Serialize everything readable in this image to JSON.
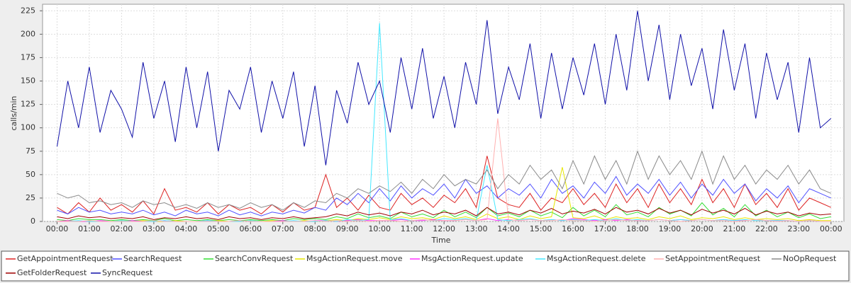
{
  "chart_data": {
    "type": "line",
    "x_label": "Time",
    "y_label": "calls/min",
    "grid": true,
    "legend": "bottom",
    "x": [
      0,
      20,
      40,
      60,
      80,
      100,
      120,
      140,
      160,
      180,
      200,
      220,
      240,
      260,
      280,
      300,
      320,
      340,
      360,
      380,
      400,
      420,
      440,
      460,
      480,
      500,
      520,
      540,
      560,
      580,
      600,
      620,
      640,
      660,
      680,
      700,
      720,
      740,
      760,
      780,
      800,
      820,
      840,
      860,
      880,
      900,
      920,
      940,
      960,
      980,
      1000,
      1020,
      1040,
      1060,
      1080,
      1100,
      1120,
      1140,
      1160,
      1180,
      1200,
      1220,
      1240,
      1260,
      1280,
      1300,
      1320,
      1340,
      1360,
      1380,
      1400,
      1420,
      1440
    ],
    "xlim": [
      -27,
      1464
    ],
    "xticks": [
      {
        "value": 0,
        "label": "00:00"
      },
      {
        "value": 60,
        "label": "01:00"
      },
      {
        "value": 120,
        "label": "02:00"
      },
      {
        "value": 180,
        "label": "03:00"
      },
      {
        "value": 240,
        "label": "04:00"
      },
      {
        "value": 300,
        "label": "05:00"
      },
      {
        "value": 360,
        "label": "06:00"
      },
      {
        "value": 420,
        "label": "07:00"
      },
      {
        "value": 480,
        "label": "08:00"
      },
      {
        "value": 540,
        "label": "09:00"
      },
      {
        "value": 600,
        "label": "10:00"
      },
      {
        "value": 660,
        "label": "11:00"
      },
      {
        "value": 720,
        "label": "12:00"
      },
      {
        "value": 780,
        "label": "13:00"
      },
      {
        "value": 840,
        "label": "14:00"
      },
      {
        "value": 900,
        "label": "15:00"
      },
      {
        "value": 960,
        "label": "16:00"
      },
      {
        "value": 1020,
        "label": "17:00"
      },
      {
        "value": 1080,
        "label": "18:00"
      },
      {
        "value": 1140,
        "label": "19:00"
      },
      {
        "value": 1200,
        "label": "20:00"
      },
      {
        "value": 1260,
        "label": "21:00"
      },
      {
        "value": 1320,
        "label": "22:00"
      },
      {
        "value": 1380,
        "label": "23:00"
      },
      {
        "value": 1440,
        "label": "00:00"
      }
    ],
    "ylim": [
      0,
      232
    ],
    "yticks": [
      0,
      25,
      50,
      75,
      100,
      125,
      150,
      175,
      200,
      225
    ],
    "series": [
      {
        "name": "GetAppointmentRequest",
        "color": "#dd2222",
        "values": [
          15,
          8,
          20,
          10,
          25,
          12,
          18,
          10,
          22,
          8,
          35,
          12,
          15,
          10,
          20,
          8,
          18,
          12,
          15,
          8,
          18,
          10,
          20,
          12,
          15,
          50,
          15,
          25,
          12,
          28,
          15,
          12,
          30,
          18,
          25,
          15,
          28,
          20,
          35,
          15,
          70,
          25,
          18,
          15,
          30,
          12,
          25,
          20,
          35,
          18,
          30,
          15,
          40,
          20,
          35,
          15,
          40,
          20,
          35,
          18,
          45,
          20,
          35,
          15,
          40,
          18,
          30,
          15,
          35,
          12,
          25,
          20,
          15
        ]
      },
      {
        "name": "SearchRequest",
        "color": "#4f4fff",
        "values": [
          12,
          8,
          15,
          10,
          12,
          8,
          10,
          8,
          12,
          7,
          10,
          6,
          12,
          8,
          10,
          6,
          12,
          7,
          10,
          6,
          10,
          8,
          12,
          9,
          15,
          12,
          25,
          18,
          30,
          20,
          35,
          22,
          38,
          25,
          35,
          28,
          40,
          25,
          45,
          30,
          38,
          25,
          35,
          28,
          40,
          25,
          45,
          30,
          38,
          25,
          42,
          30,
          48,
          28,
          40,
          30,
          45,
          28,
          42,
          25,
          40,
          28,
          45,
          30,
          40,
          22,
          35,
          25,
          38,
          20,
          35,
          30,
          25
        ]
      },
      {
        "name": "SearchConvRequest",
        "color": "#33dd33",
        "values": [
          2,
          1,
          3,
          2,
          2,
          1,
          2,
          1,
          2,
          1,
          3,
          1,
          2,
          1,
          2,
          1,
          2,
          1,
          2,
          1,
          2,
          1,
          3,
          2,
          3,
          2,
          5,
          3,
          8,
          4,
          6,
          3,
          10,
          5,
          8,
          4,
          12,
          5,
          10,
          4,
          15,
          6,
          9,
          5,
          12,
          6,
          10,
          4,
          15,
          6,
          12,
          5,
          18,
          7,
          10,
          5,
          15,
          8,
          12,
          6,
          20,
          7,
          14,
          5,
          18,
          6,
          12,
          5,
          10,
          4,
          8,
          3,
          5
        ]
      },
      {
        "name": "MsgActionRequest.move",
        "color": "#e6e600",
        "values": [
          0,
          1,
          0,
          1,
          0,
          0,
          1,
          0,
          1,
          0,
          0,
          1,
          0,
          0,
          0,
          1,
          0,
          0,
          1,
          0,
          1,
          0,
          0,
          1,
          0,
          1,
          2,
          1,
          3,
          2,
          4,
          2,
          5,
          3,
          4,
          2,
          6,
          3,
          5,
          2,
          8,
          3,
          5,
          2,
          6,
          3,
          5,
          58,
          4,
          3,
          6,
          2,
          5,
          3,
          4,
          2,
          5,
          3,
          6,
          2,
          4,
          3,
          5,
          2,
          4,
          2,
          3,
          2,
          3,
          1,
          2,
          1,
          1
        ]
      },
      {
        "name": "MsgActionRequest.update",
        "color": "#ff33ff",
        "values": [
          0,
          1,
          0,
          0,
          1,
          0,
          0,
          1,
          0,
          0,
          1,
          0,
          0,
          0,
          1,
          0,
          0,
          1,
          0,
          0,
          0,
          1,
          0,
          0,
          1,
          1,
          0,
          1,
          2,
          1,
          1,
          1,
          2,
          1,
          1,
          2,
          1,
          1,
          2,
          1,
          3,
          1,
          2,
          1,
          2,
          1,
          2,
          1,
          3,
          2,
          1,
          2,
          1,
          2,
          1,
          1,
          2,
          1,
          2,
          1,
          2,
          1,
          2,
          1,
          1,
          2,
          1,
          1,
          1,
          0,
          1,
          0,
          0
        ]
      },
      {
        "name": "MsgActionRequest.delete",
        "color": "#44e8ff",
        "values": [
          0,
          0,
          1,
          0,
          0,
          0,
          1,
          0,
          0,
          0,
          1,
          0,
          0,
          0,
          1,
          0,
          0,
          0,
          1,
          0,
          0,
          0,
          1,
          0,
          0,
          1,
          0,
          2,
          1,
          2,
          212,
          2,
          3,
          1,
          2,
          1,
          3,
          2,
          3,
          1,
          60,
          2,
          1,
          2,
          3,
          1,
          2,
          1,
          2,
          1,
          2,
          1,
          3,
          1,
          2,
          1,
          2,
          1,
          2,
          1,
          2,
          1,
          2,
          1,
          2,
          1,
          1,
          1,
          1,
          0,
          1,
          0,
          0
        ]
      },
      {
        "name": "SetAppointmentRequest",
        "color": "#ffb0b0",
        "values": [
          0,
          0,
          0,
          1,
          0,
          0,
          0,
          0,
          0,
          1,
          0,
          0,
          0,
          0,
          0,
          0,
          0,
          1,
          0,
          0,
          0,
          0,
          0,
          0,
          1,
          0,
          1,
          0,
          1,
          0,
          1,
          1,
          0,
          1,
          2,
          1,
          1,
          1,
          2,
          1,
          2,
          110,
          2,
          1,
          2,
          1,
          1,
          2,
          1,
          1,
          0,
          1,
          2,
          1,
          1,
          1,
          2,
          1,
          0,
          1,
          2,
          1,
          1,
          0,
          1,
          2,
          1,
          0,
          1,
          0,
          1,
          0,
          0
        ]
      },
      {
        "name": "NoOpRequest",
        "color": "#8a8a8a",
        "values": [
          30,
          25,
          28,
          20,
          22,
          18,
          20,
          15,
          22,
          18,
          20,
          15,
          18,
          14,
          20,
          15,
          18,
          14,
          20,
          15,
          18,
          12,
          20,
          15,
          22,
          20,
          30,
          25,
          35,
          30,
          38,
          32,
          42,
          30,
          45,
          35,
          50,
          38,
          45,
          40,
          55,
          35,
          50,
          40,
          60,
          45,
          55,
          35,
          65,
          40,
          70,
          45,
          65,
          40,
          75,
          45,
          70,
          50,
          65,
          45,
          75,
          40,
          70,
          45,
          60,
          40,
          55,
          45,
          60,
          40,
          55,
          35,
          30
        ]
      },
      {
        "name": "GetFolderRequest",
        "color": "#a00000",
        "values": [
          5,
          3,
          6,
          4,
          5,
          3,
          4,
          3,
          5,
          2,
          4,
          3,
          5,
          3,
          4,
          2,
          5,
          3,
          4,
          2,
          4,
          3,
          5,
          3,
          4,
          5,
          8,
          6,
          10,
          7,
          9,
          6,
          10,
          8,
          12,
          7,
          10,
          8,
          12,
          6,
          15,
          8,
          10,
          7,
          12,
          9,
          14,
          8,
          11,
          9,
          13,
          8,
          15,
          10,
          12,
          8,
          14,
          9,
          12,
          7,
          13,
          9,
          12,
          8,
          14,
          7,
          11,
          8,
          10,
          6,
          9,
          7,
          8
        ]
      },
      {
        "name": "SyncRequest",
        "color": "#1010a8",
        "values": [
          80,
          150,
          100,
          165,
          95,
          140,
          120,
          90,
          170,
          110,
          150,
          85,
          165,
          100,
          160,
          75,
          140,
          120,
          165,
          95,
          150,
          110,
          160,
          80,
          145,
          60,
          140,
          105,
          170,
          125,
          150,
          95,
          175,
          120,
          185,
          110,
          155,
          100,
          170,
          125,
          215,
          115,
          165,
          130,
          190,
          110,
          180,
          120,
          175,
          135,
          190,
          125,
          200,
          140,
          225,
          150,
          210,
          130,
          200,
          145,
          185,
          120,
          205,
          140,
          190,
          110,
          180,
          130,
          170,
          95,
          175,
          100,
          110
        ]
      }
    ]
  }
}
